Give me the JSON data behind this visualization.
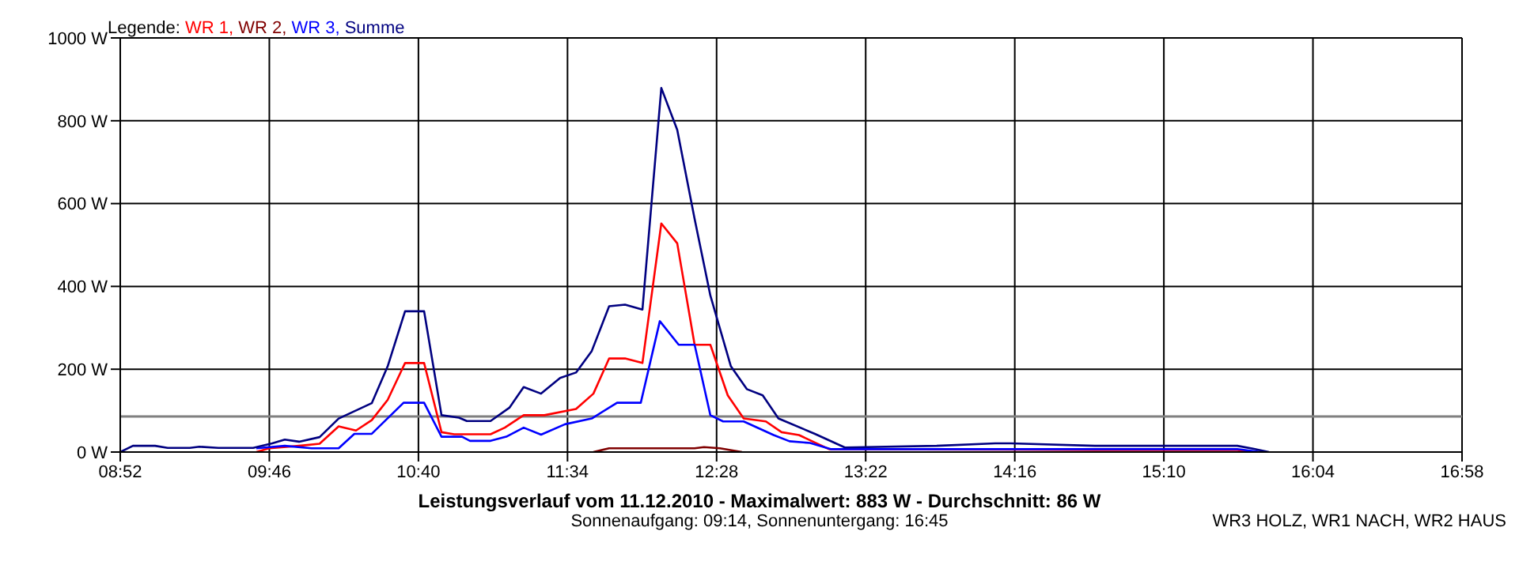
{
  "chart_data": {
    "type": "line",
    "title": "Leistungsverlauf vom 11.12.2010 - Maximalwert: 883 W - Durchschnitt: 86 W",
    "subtitle": "Sonnenaufgang: 09:14, Sonnenuntergang: 16:45",
    "legend_title": "Legende:",
    "annotations": [
      "WR3 HOLZ, WR1 NACH, WR2 HAUS"
    ],
    "xlim": [
      8.8667,
      16.9667
    ],
    "xticks": [
      {
        "value": 8.8667,
        "label": "08:52"
      },
      {
        "value": 9.7667,
        "label": "09:46"
      },
      {
        "value": 10.6667,
        "label": "10:40"
      },
      {
        "value": 11.5667,
        "label": "11:34"
      },
      {
        "value": 12.4667,
        "label": "12:28"
      },
      {
        "value": 13.3667,
        "label": "13:22"
      },
      {
        "value": 14.2667,
        "label": "14:16"
      },
      {
        "value": 15.1667,
        "label": "15:10"
      },
      {
        "value": 16.0667,
        "label": "16:04"
      },
      {
        "value": 16.9667,
        "label": "16:58"
      }
    ],
    "ylim": [
      0,
      1000
    ],
    "yticks": [
      {
        "value": 0,
        "label": "0 W"
      },
      {
        "value": 200,
        "label": "200 W"
      },
      {
        "value": 400,
        "label": "400 W"
      },
      {
        "value": 600,
        "label": "600 W"
      },
      {
        "value": 800,
        "label": "800 W"
      },
      {
        "value": 1000,
        "label": "1000 W"
      }
    ],
    "grid": true,
    "legend": "top left",
    "marker": "none",
    "line_style": "solid",
    "ref_lines": [
      {
        "axis": "y",
        "value": 86,
        "color": "#808080"
      }
    ],
    "series": [
      {
        "name": "WR 1,",
        "color": "#ff0000",
        "x": [
          9.688,
          9.765,
          9.946,
          10.07,
          10.185,
          10.29,
          10.385,
          10.481,
          10.586,
          10.701,
          10.806,
          10.882,
          11.102,
          11.188,
          11.302,
          11.427,
          11.618,
          11.723,
          11.818,
          11.914,
          12.019,
          12.133,
          12.229,
          12.334,
          12.429,
          12.534,
          12.63,
          12.764,
          12.859,
          12.964,
          13.146,
          14.75,
          15.61,
          15.705
        ],
        "values": [
          0,
          9,
          15,
          20,
          62,
          52,
          77,
          126,
          215,
          215,
          48,
          43,
          43,
          59,
          89,
          89,
          104,
          141,
          226,
          226,
          215,
          552,
          504,
          259,
          259,
          137,
          81,
          74,
          48,
          41,
          7,
          5,
          5,
          0
        ]
      },
      {
        "name": "WR 2,",
        "color": "#800000",
        "x": [
          11.723,
          11.818,
          12.334,
          12.391,
          12.487,
          12.62
        ],
        "values": [
          0,
          9,
          9,
          12,
          9,
          0
        ]
      },
      {
        "name": "WR 3,",
        "color": "#0000ff",
        "x": [
          9.688,
          9.86,
          10.022,
          10.185,
          10.28,
          10.385,
          10.577,
          10.701,
          10.806,
          10.93,
          10.978,
          11.102,
          11.197,
          11.302,
          11.407,
          11.551,
          11.713,
          11.866,
          12.009,
          12.124,
          12.238,
          12.334,
          12.429,
          12.506,
          12.63,
          12.811,
          12.907,
          13.031,
          13.155,
          15.61,
          15.753
        ],
        "values": [
          9,
          15,
          9,
          9,
          44,
          44,
          119,
          119,
          37,
          37,
          27,
          27,
          37,
          59,
          42,
          67,
          81,
          119,
          119,
          316,
          259,
          259,
          89,
          74,
          74,
          41,
          26,
          22,
          7,
          7,
          0
        ]
      },
      {
        "name": "Summe",
        "color": "#000080",
        "x": [
          8.867,
          8.943,
          9.077,
          9.153,
          9.287,
          9.344,
          9.459,
          9.669,
          9.784,
          9.86,
          9.946,
          10.07,
          10.185,
          10.385,
          10.481,
          10.586,
          10.701,
          10.806,
          10.911,
          10.959,
          11.102,
          11.216,
          11.302,
          11.407,
          11.522,
          11.618,
          11.713,
          11.818,
          11.914,
          12.019,
          12.133,
          12.229,
          12.334,
          12.429,
          12.553,
          12.649,
          12.745,
          12.84,
          13.06,
          13.241,
          13.795,
          14.149,
          14.244,
          14.75,
          15.323,
          15.61,
          15.705,
          15.801
        ],
        "values": [
          0,
          15,
          15,
          10,
          10,
          13,
          10,
          10,
          21,
          30,
          25,
          36,
          81,
          118,
          207,
          340,
          340,
          89,
          83,
          75,
          75,
          107,
          157,
          141,
          179,
          192,
          244,
          352,
          356,
          344,
          879,
          778,
          563,
          378,
          207,
          152,
          137,
          81,
          44,
          11,
          15,
          21,
          21,
          15,
          15,
          15,
          8,
          0
        ]
      }
    ]
  }
}
